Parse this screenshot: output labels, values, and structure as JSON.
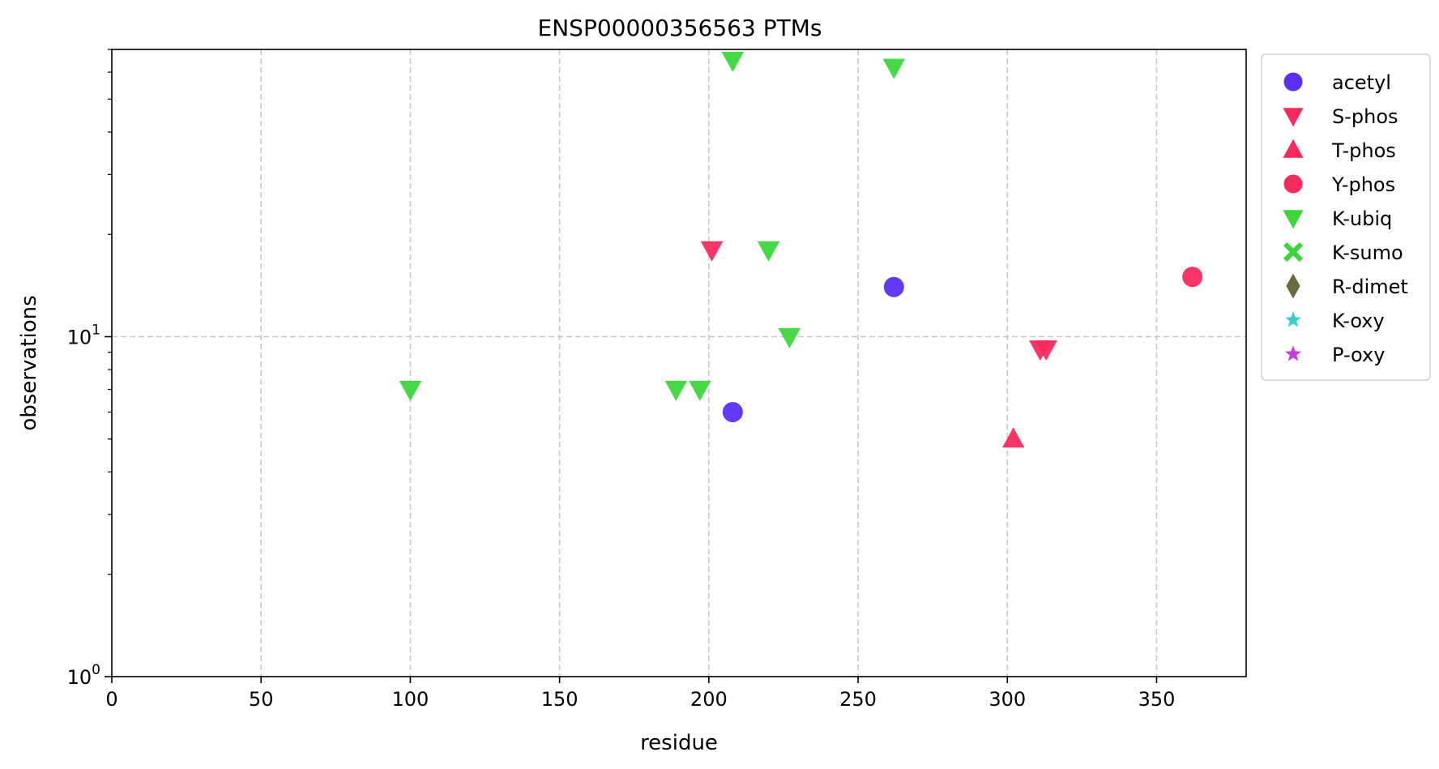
{
  "chart_data": {
    "type": "scatter",
    "title": "ENSP00000356563 PTMs",
    "xlabel": "residue",
    "ylabel": "observations",
    "xlim": [
      0,
      380
    ],
    "ylim": [
      1,
      70
    ],
    "yscale": "log",
    "grid": true,
    "legend_position": "outside-right",
    "x_ticks": [
      0,
      50,
      100,
      150,
      200,
      250,
      300,
      350
    ],
    "x_tick_labels": [
      "0",
      "50",
      "100",
      "150",
      "200",
      "250",
      "300",
      "350"
    ],
    "y_ticks": [
      1,
      10
    ],
    "y_tick_labels": [
      {
        "base": "10",
        "exp": "0"
      },
      {
        "base": "10",
        "exp": "1"
      }
    ],
    "series": [
      {
        "name": "acetyl",
        "marker": "circle",
        "color": "#5b2ff2",
        "points": [
          {
            "x": 208,
            "y": 6
          },
          {
            "x": 262,
            "y": 14
          }
        ]
      },
      {
        "name": "S-phos",
        "marker": "triangle-down",
        "color": "#f72a5e",
        "points": [
          {
            "x": 201,
            "y": 18
          },
          {
            "x": 311,
            "y": 9.2
          },
          {
            "x": 313,
            "y": 9.2
          }
        ]
      },
      {
        "name": "T-phos",
        "marker": "triangle-up",
        "color": "#f72a5e",
        "points": [
          {
            "x": 302,
            "y": 5
          }
        ]
      },
      {
        "name": "Y-phos",
        "marker": "circle",
        "color": "#f72a5e",
        "points": [
          {
            "x": 362,
            "y": 15
          }
        ]
      },
      {
        "name": "K-ubiq",
        "marker": "triangle-down",
        "color": "#3cd63c",
        "points": [
          {
            "x": 100,
            "y": 7
          },
          {
            "x": 189,
            "y": 7
          },
          {
            "x": 197,
            "y": 7
          },
          {
            "x": 208,
            "y": 65
          },
          {
            "x": 220,
            "y": 18
          },
          {
            "x": 227,
            "y": 10
          },
          {
            "x": 262,
            "y": 62
          }
        ]
      },
      {
        "name": "K-sumo",
        "marker": "x-filled",
        "color": "#3cd63c",
        "points": []
      },
      {
        "name": "R-dimet",
        "marker": "diamond",
        "color": "#6b6b3f",
        "points": []
      },
      {
        "name": "K-oxy",
        "marker": "star",
        "color": "#3dcfcf",
        "points": []
      },
      {
        "name": "P-oxy",
        "marker": "star",
        "color": "#c63ddb",
        "points": []
      }
    ]
  }
}
